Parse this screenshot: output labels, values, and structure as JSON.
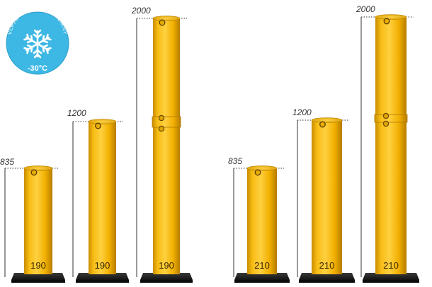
{
  "badge": {
    "text": "VERZE TAKÉ PRO MRAZÍRNY",
    "temperature": "-30°C",
    "icon": "snowflake-icon",
    "color": "#3db7e4"
  },
  "colors": {
    "bollard": "#f5b400",
    "base": "#1c1c1c",
    "dimension_line": "#333333"
  },
  "bollards": [
    {
      "height_label": "835",
      "diameter_label": "190",
      "joints": 0
    },
    {
      "height_label": "1200",
      "diameter_label": "190",
      "joints": 0
    },
    {
      "height_label": "2000",
      "diameter_label": "190",
      "joints": 1
    },
    {
      "height_label": "835",
      "diameter_label": "210",
      "joints": 0
    },
    {
      "height_label": "1200",
      "diameter_label": "210",
      "joints": 0
    },
    {
      "height_label": "2000",
      "diameter_label": "210",
      "joints": 1
    }
  ]
}
